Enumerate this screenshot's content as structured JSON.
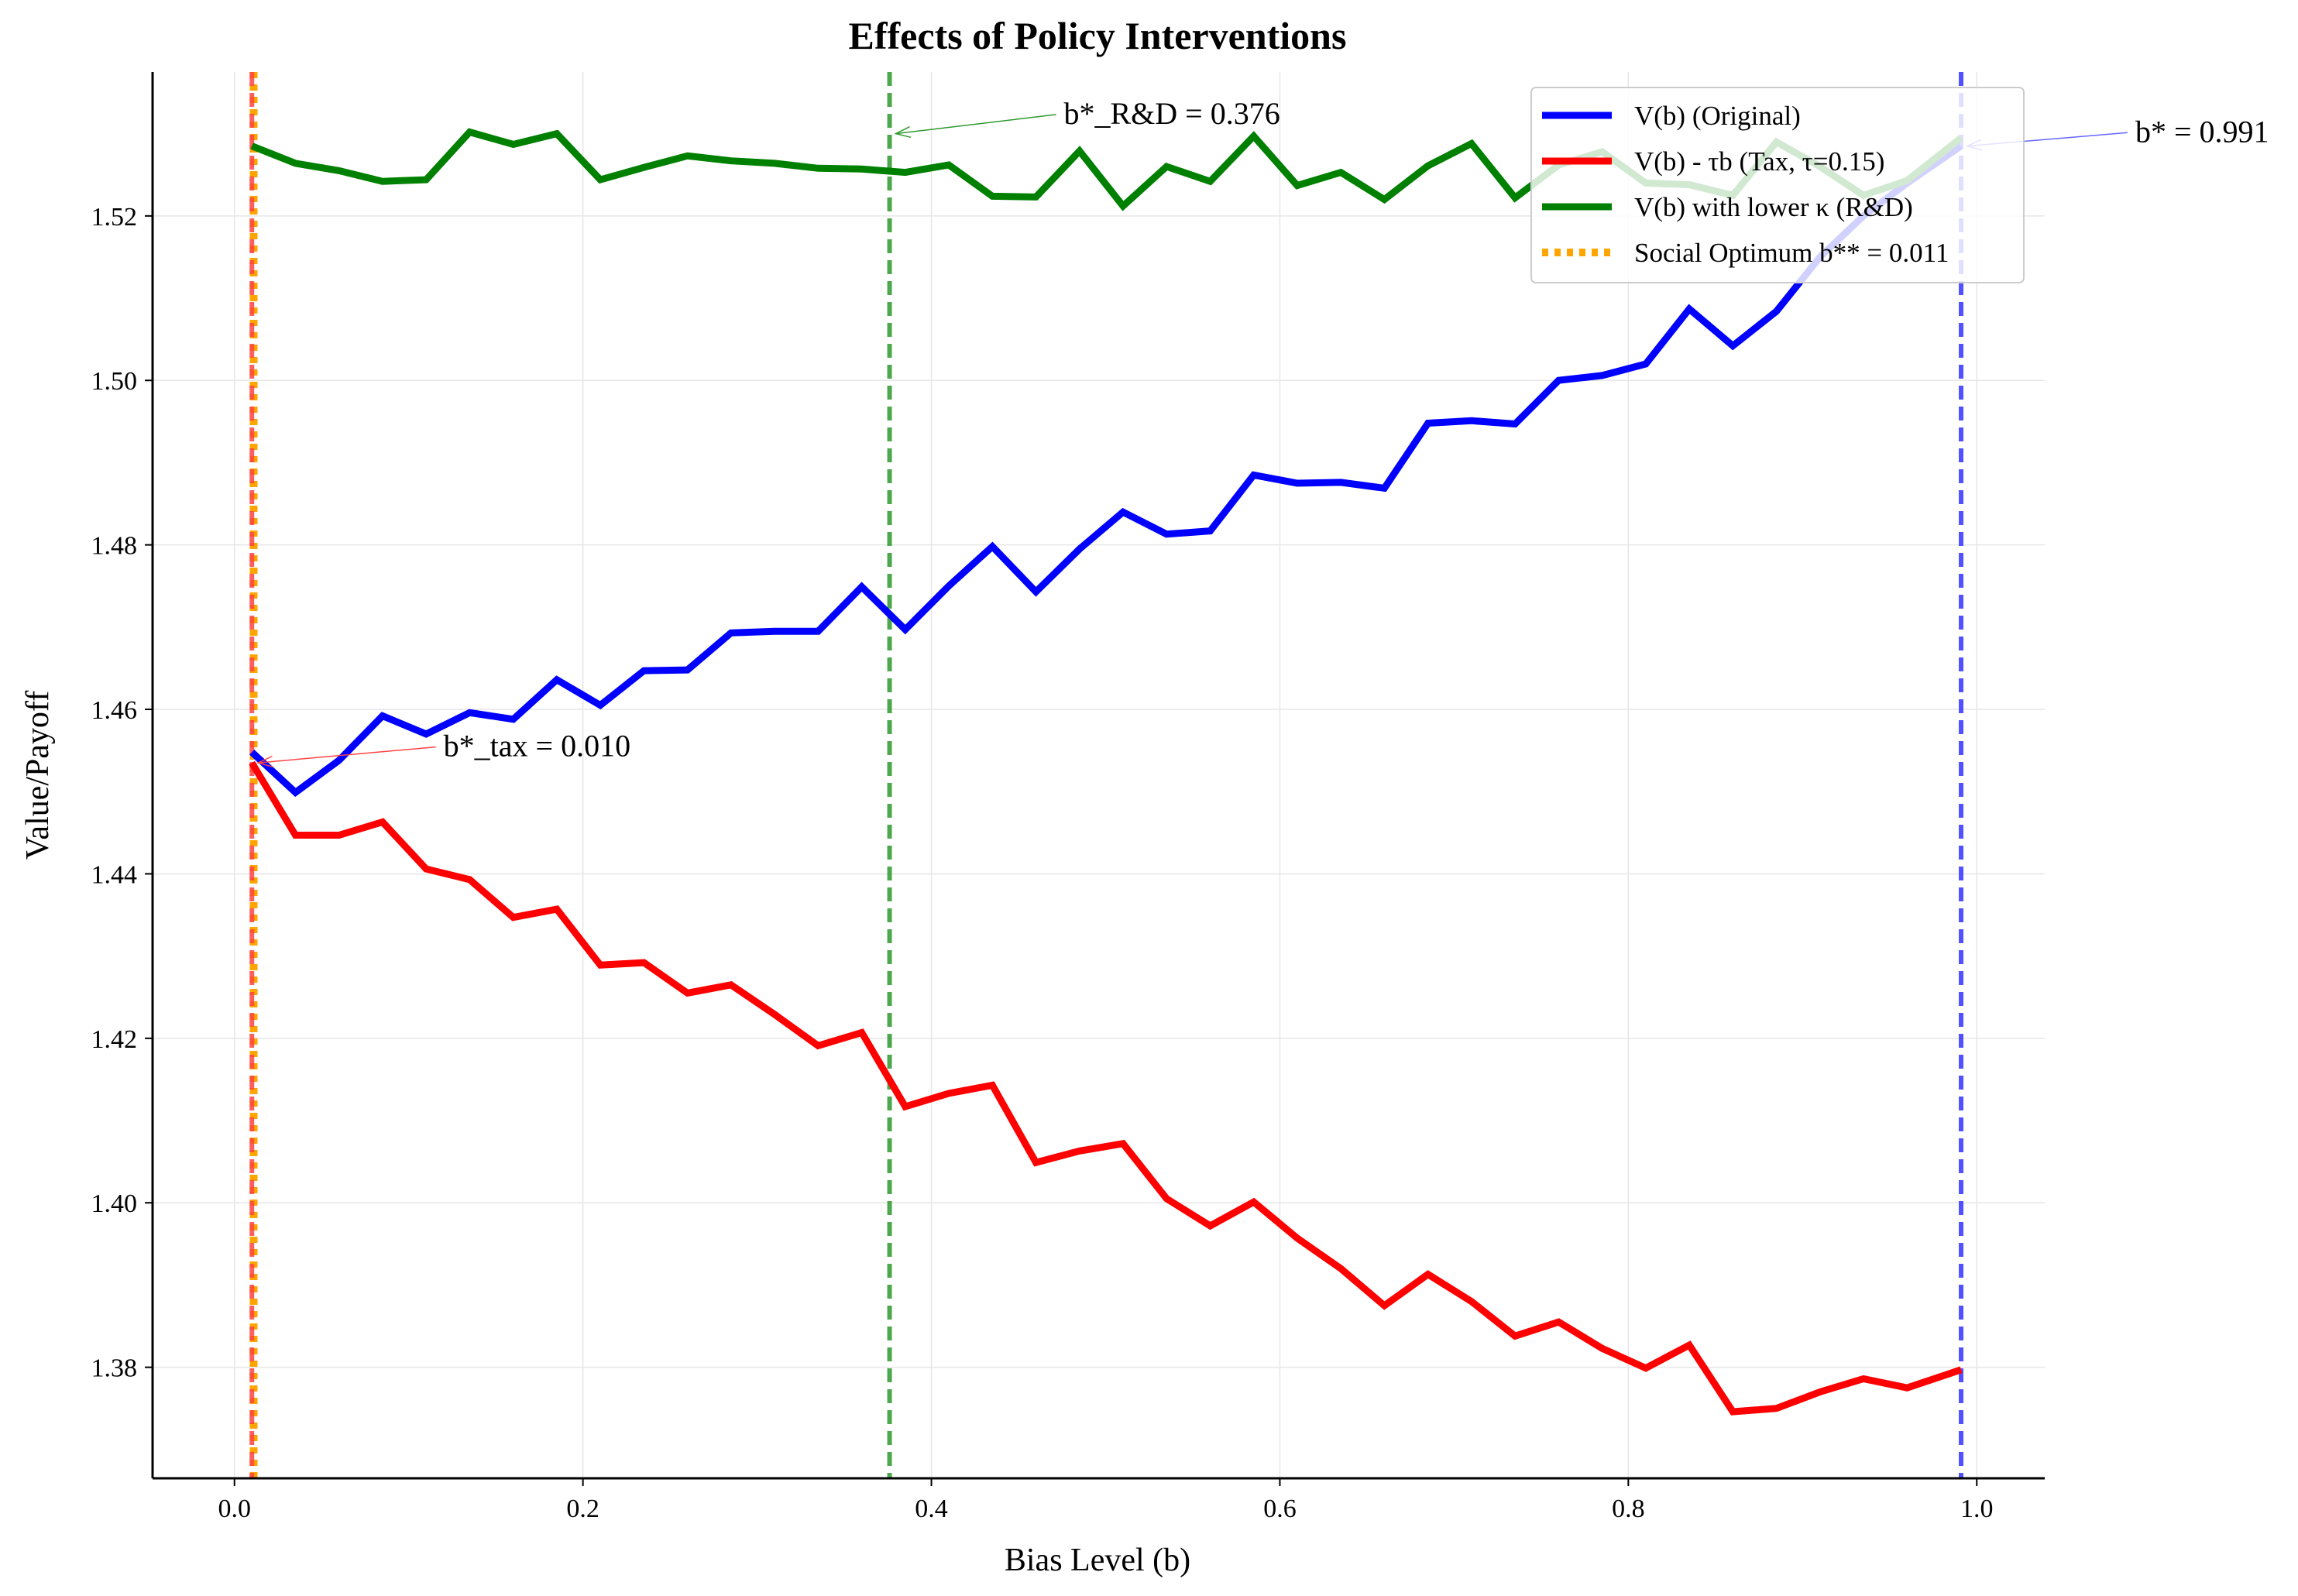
{
  "chart_data": {
    "type": "line",
    "title": "Effects of Policy Interventions",
    "xlabel": "Bias Level (b)",
    "ylabel": "Value/Payoff",
    "xlim": [
      -0.047,
      1.039
    ],
    "ylim": [
      1.3665,
      1.5375
    ],
    "xticks": [
      0.0,
      0.2,
      0.4,
      0.6,
      0.8,
      1.0
    ],
    "xtick_labels": [
      "0.0",
      "0.2",
      "0.4",
      "0.6",
      "0.8",
      "1.0"
    ],
    "yticks": [
      1.38,
      1.4,
      1.42,
      1.44,
      1.46,
      1.48,
      1.5,
      1.52
    ],
    "ytick_labels": [
      "1.38",
      "1.40",
      "1.42",
      "1.44",
      "1.46",
      "1.48",
      "1.50",
      "1.52"
    ],
    "grid": true,
    "legend_position": "top-right",
    "x": [
      0.01,
      0.035,
      0.06,
      0.085,
      0.11,
      0.135,
      0.16,
      0.185,
      0.21,
      0.235,
      0.26,
      0.285,
      0.31,
      0.335,
      0.36,
      0.385,
      0.41,
      0.435,
      0.46,
      0.485,
      0.51,
      0.535,
      0.56,
      0.585,
      0.61,
      0.635,
      0.66,
      0.685,
      0.71,
      0.735,
      0.76,
      0.785,
      0.81,
      0.835,
      0.86,
      0.885,
      0.91,
      0.935,
      0.96,
      0.991
    ],
    "series": [
      {
        "name": "V(b) (Original)",
        "color": "#0000ff",
        "style": "solid",
        "values": [
          1.4548,
          1.4499,
          1.4538,
          1.4592,
          1.457,
          1.4596,
          1.4588,
          1.4636,
          1.4605,
          1.4647,
          1.4648,
          1.4693,
          1.4695,
          1.4695,
          1.4749,
          1.4697,
          1.475,
          1.4798,
          1.4743,
          1.4795,
          1.484,
          1.4813,
          1.4817,
          1.4885,
          1.4875,
          1.4876,
          1.4869,
          1.4948,
          1.4951,
          1.4947,
          1.5,
          1.5006,
          1.502,
          1.5087,
          1.5042,
          1.5084,
          1.515,
          1.52,
          1.524,
          1.5285
        ]
      },
      {
        "name": "V(b) - τb (Tax, τ=0.15)",
        "color": "#ff0000",
        "style": "solid",
        "values": [
          1.4535,
          1.4447,
          1.4447,
          1.4463,
          1.4406,
          1.4393,
          1.4347,
          1.4357,
          1.4289,
          1.4292,
          1.4255,
          1.4265,
          1.4229,
          1.4191,
          1.4207,
          1.4117,
          1.4133,
          1.4143,
          1.4049,
          1.4063,
          1.4072,
          1.4005,
          1.3972,
          1.4001,
          1.3957,
          1.392,
          1.3875,
          1.3913,
          1.388,
          1.3838,
          1.3855,
          1.3823,
          1.3799,
          1.3827,
          1.3746,
          1.375,
          1.377,
          1.3786,
          1.3775,
          1.3797
        ]
      },
      {
        "name": "V(b) with lower κ (R&D)",
        "color": "#008000",
        "style": "solid",
        "values": [
          1.5285,
          1.5264,
          1.5255,
          1.5242,
          1.5244,
          1.5302,
          1.5287,
          1.53,
          1.5244,
          1.5259,
          1.5273,
          1.5267,
          1.5264,
          1.5258,
          1.5257,
          1.5253,
          1.5262,
          1.5224,
          1.5223,
          1.5279,
          1.5212,
          1.526,
          1.5242,
          1.5297,
          1.5237,
          1.5253,
          1.522,
          1.5261,
          1.5288,
          1.5222,
          1.5262,
          1.5278,
          1.524,
          1.5238,
          1.5225,
          1.529,
          1.526,
          1.5225,
          1.5243,
          1.5295
        ]
      }
    ],
    "vlines": [
      {
        "name": "Social Optimum b** = 0.011",
        "x": 0.011,
        "color": "#ffa500",
        "style": "dotted",
        "in_legend": true
      },
      {
        "x": 0.01,
        "color": "#ff4444",
        "style": "dashed",
        "in_legend": false
      },
      {
        "x": 0.376,
        "color": "#2e9a2e",
        "style": "dashed",
        "in_legend": false
      },
      {
        "x": 0.991,
        "color": "#3333ff",
        "style": "dashed",
        "in_legend": false
      }
    ],
    "annotations": [
      {
        "text": "b*_tax = 0.010",
        "point": [
          0.01,
          1.4535
        ],
        "text_at": [
          0.12,
          1.4543
        ],
        "color": "#ff4444"
      },
      {
        "text": "b*_R&D = 0.376",
        "point": [
          0.376,
          1.53
        ],
        "text_at": [
          0.476,
          1.5312
        ],
        "color": "#2e9a2e"
      },
      {
        "text": "b* = 0.991",
        "point": [
          0.991,
          1.5285
        ],
        "text_at": [
          1.091,
          1.529
        ],
        "color": "#6666ff"
      }
    ]
  }
}
